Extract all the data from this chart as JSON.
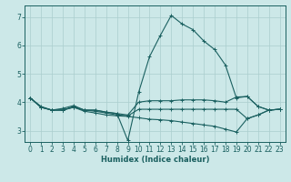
{
  "xlabel": "Humidex (Indice chaleur)",
  "xlim": [
    -0.5,
    23.5
  ],
  "ylim": [
    2.6,
    7.4
  ],
  "xticks": [
    0,
    1,
    2,
    3,
    4,
    5,
    6,
    7,
    8,
    9,
    10,
    11,
    12,
    13,
    14,
    15,
    16,
    17,
    18,
    19,
    20,
    21,
    22,
    23
  ],
  "yticks": [
    3,
    4,
    5,
    6,
    7
  ],
  "background_color": "#cce8e8",
  "grid_color": "#aacece",
  "line_color": "#1a6060",
  "lines": [
    {
      "x": [
        0,
        1,
        2,
        3,
        4,
        5,
        6,
        7,
        8,
        9,
        10,
        11,
        12,
        13,
        14,
        15,
        16,
        17,
        18,
        19,
        20,
        21,
        22,
        23
      ],
      "y": [
        4.15,
        3.85,
        3.72,
        3.72,
        3.85,
        3.72,
        3.72,
        3.65,
        3.6,
        2.65,
        4.35,
        5.6,
        6.35,
        7.05,
        6.75,
        6.55,
        6.15,
        5.85,
        5.3,
        4.15,
        4.2,
        3.85,
        3.72,
        3.75
      ]
    },
    {
      "x": [
        0,
        1,
        2,
        3,
        4,
        5,
        6,
        7,
        8,
        9,
        10,
        11,
        12,
        13,
        14,
        15,
        16,
        17,
        18,
        19,
        20,
        21,
        22,
        23
      ],
      "y": [
        4.15,
        3.82,
        3.72,
        3.78,
        3.88,
        3.72,
        3.72,
        3.65,
        3.6,
        3.55,
        4.0,
        4.05,
        4.05,
        4.05,
        4.08,
        4.08,
        4.08,
        4.05,
        4.0,
        4.18,
        4.2,
        3.85,
        3.72,
        3.75
      ]
    },
    {
      "x": [
        0,
        1,
        2,
        3,
        4,
        5,
        6,
        7,
        8,
        9,
        10,
        11,
        12,
        13,
        14,
        15,
        16,
        17,
        18,
        19,
        20,
        21,
        22,
        23
      ],
      "y": [
        4.15,
        3.82,
        3.72,
        3.72,
        3.82,
        3.72,
        3.68,
        3.62,
        3.55,
        3.52,
        3.75,
        3.75,
        3.75,
        3.75,
        3.75,
        3.75,
        3.75,
        3.75,
        3.75,
        3.75,
        3.42,
        3.55,
        3.72,
        3.75
      ]
    },
    {
      "x": [
        0,
        1,
        2,
        3,
        4,
        5,
        6,
        7,
        8,
        9,
        10,
        11,
        12,
        13,
        14,
        15,
        16,
        17,
        18,
        19,
        20,
        21,
        22,
        23
      ],
      "y": [
        4.15,
        3.82,
        3.72,
        3.72,
        3.82,
        3.68,
        3.62,
        3.55,
        3.52,
        3.5,
        3.45,
        3.4,
        3.38,
        3.35,
        3.3,
        3.25,
        3.2,
        3.15,
        3.05,
        2.95,
        3.42,
        3.55,
        3.72,
        3.75
      ]
    }
  ]
}
